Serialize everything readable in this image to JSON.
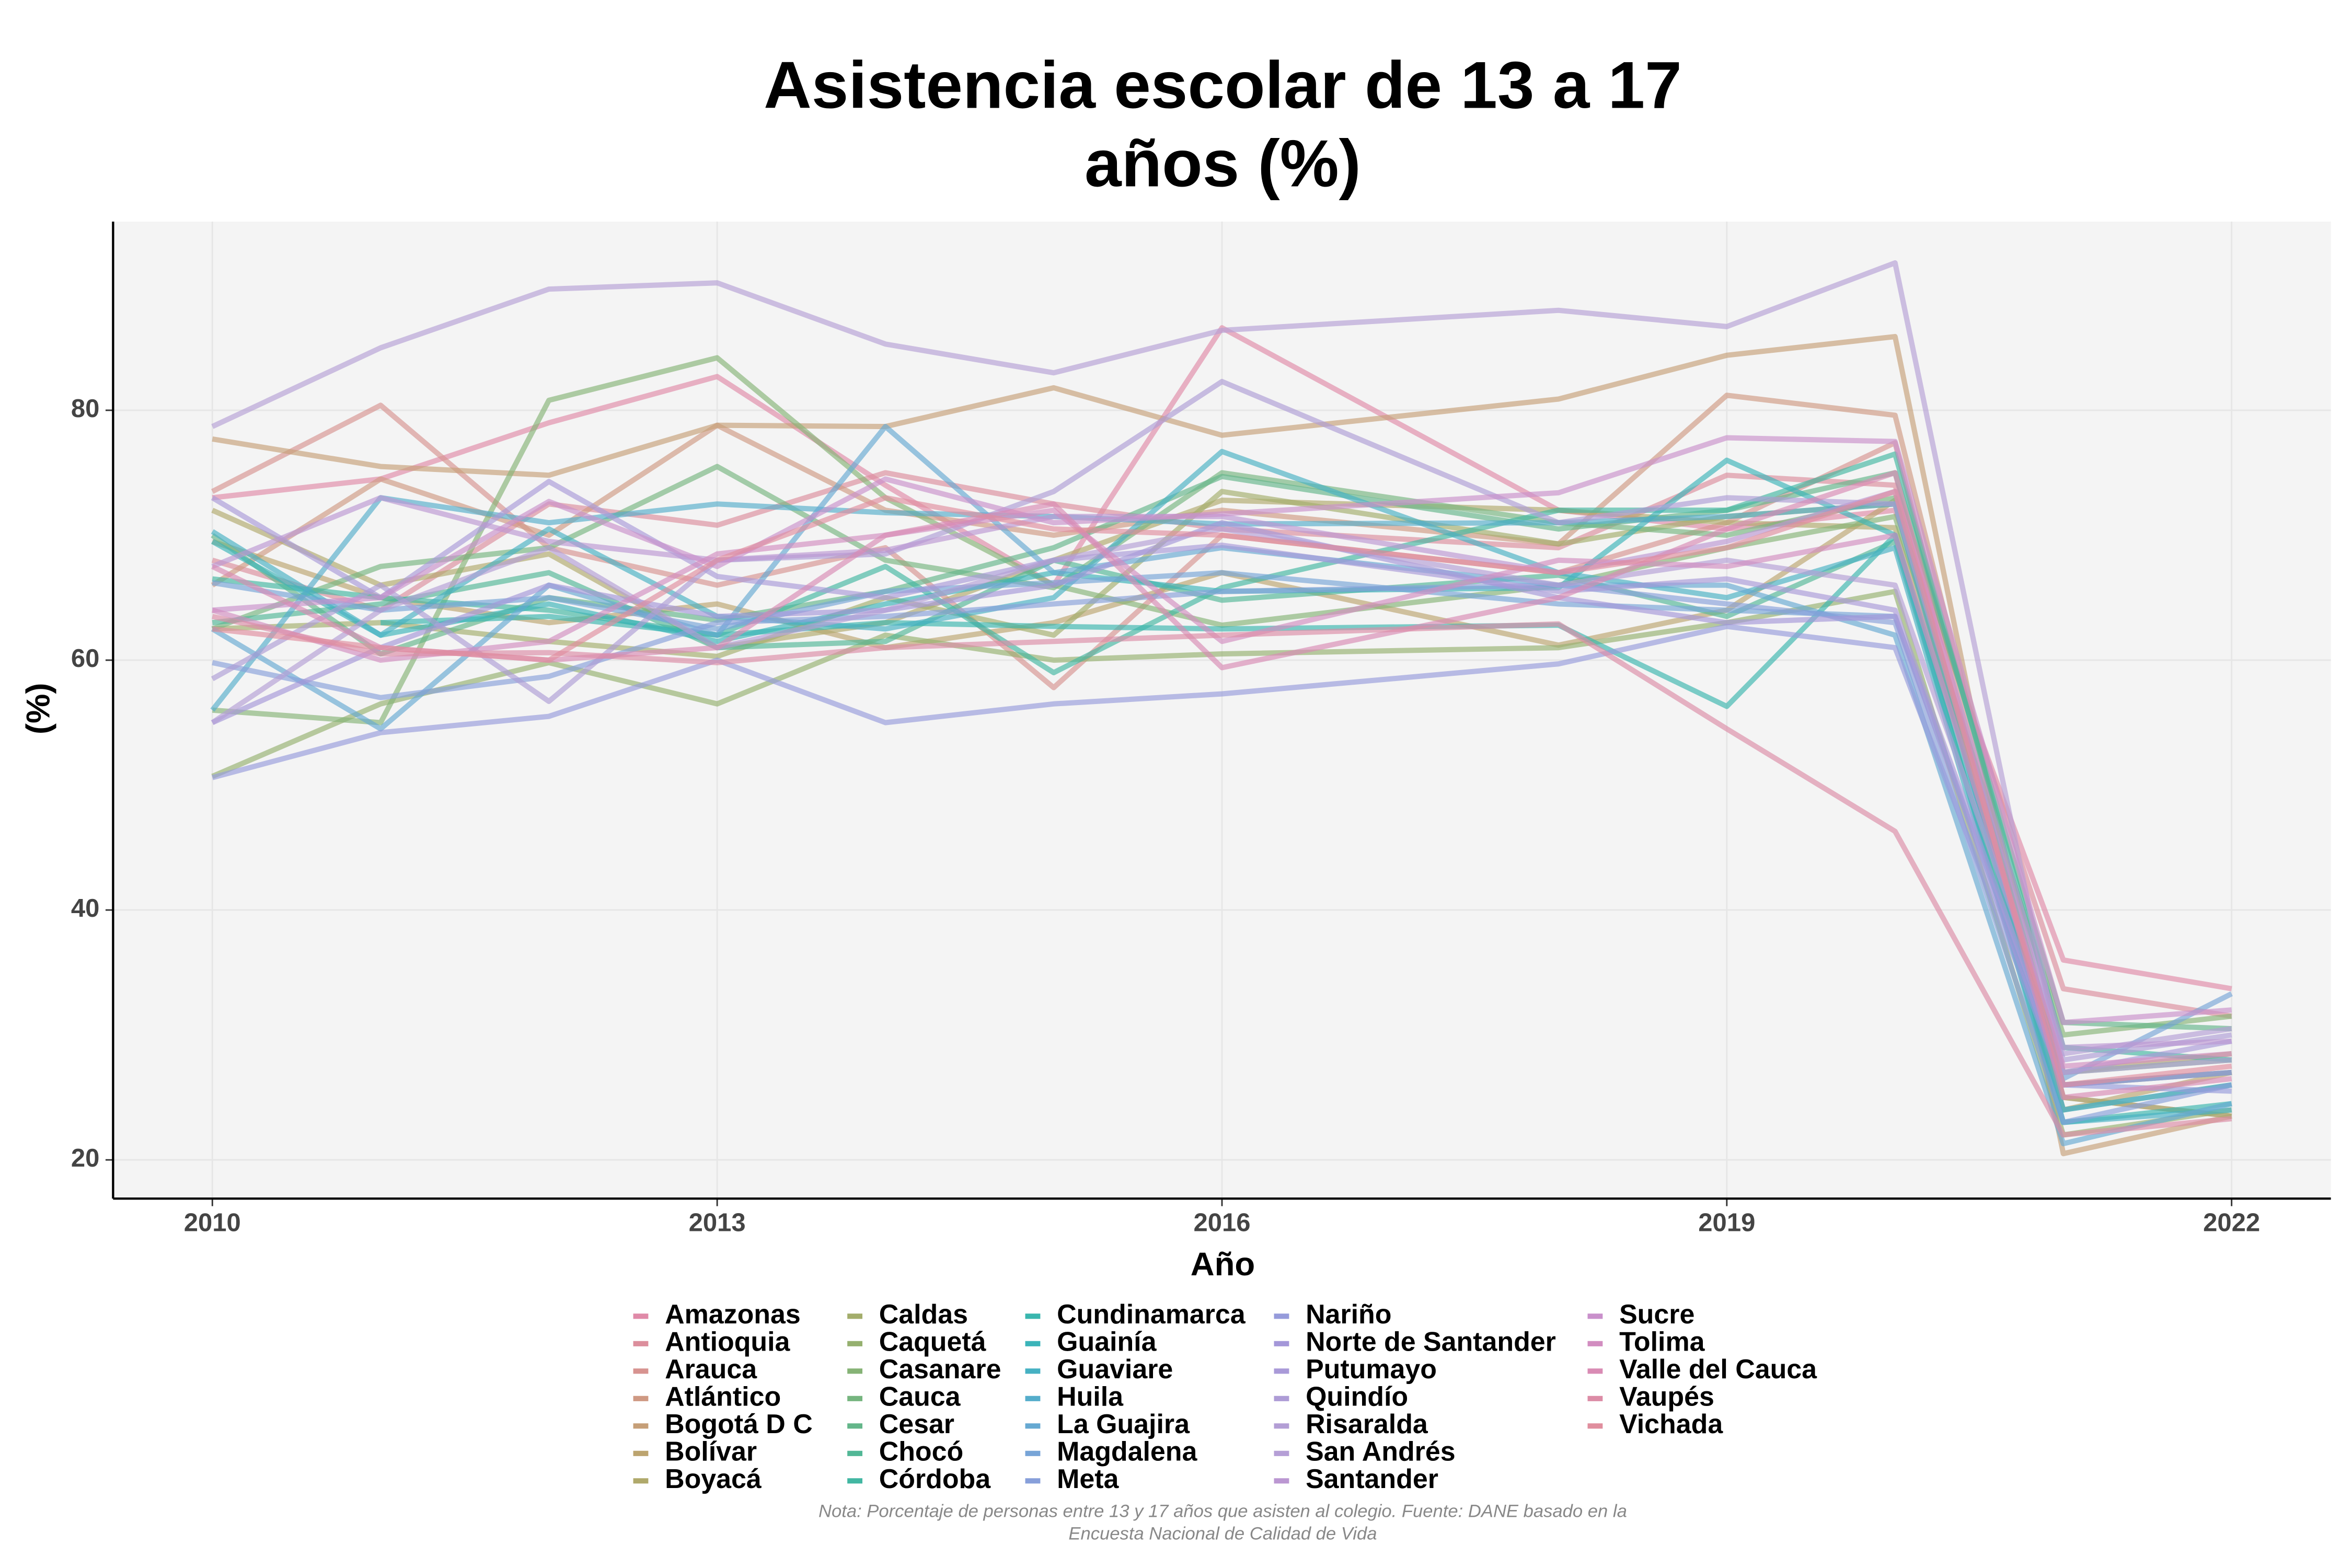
{
  "chart_data": {
    "type": "line",
    "title": [
      "Asistencia escolar de 13 a 17",
      "años (%)"
    ],
    "x_label": "Año",
    "y_label": "(%)",
    "note": [
      "Nota: Porcentaje de personas entre 13 y 17 años que asisten al colegio. Fuente: DANE basado en la",
      "Encuesta Nacional de Calidad de Vida"
    ],
    "x": [
      2010,
      2011,
      2012,
      2013,
      2014,
      2015,
      2016,
      2018,
      2019,
      2020,
      2021,
      2022
    ],
    "xlim": [
      2009.41,
      2022.59
    ],
    "xticks": [
      2010,
      2013,
      2016,
      2019,
      2022
    ],
    "ylim": [
      16.9,
      95.1
    ],
    "yticks": [
      20,
      40,
      60,
      80
    ],
    "grid": true,
    "legend": "bottom",
    "series": [
      {
        "name": "Amazonas",
        "color": "#e08aa8",
        "values": [
          73,
          74.5,
          79,
          82.7,
          74,
          66,
          86.6,
          72,
          70.5,
          72,
          36,
          33.7
        ]
      },
      {
        "name": "Antioquia",
        "color": "#dc8e9c",
        "values": [
          68,
          64,
          72.5,
          70.8,
          75,
          72.5,
          70.5,
          69,
          74.8,
          74,
          33.7,
          31.5
        ]
      },
      {
        "name": "Arauca",
        "color": "#d79390",
        "values": [
          73.5,
          80.4,
          69,
          66,
          69,
          57.8,
          70,
          67,
          71,
          77.4,
          25,
          23.5
        ]
      },
      {
        "name": "Atlántico",
        "color": "#cf9983",
        "values": [
          66,
          74.5,
          70,
          78.8,
          72,
          70,
          72,
          69.3,
          81.2,
          79.6,
          26,
          27
        ]
      },
      {
        "name": "Bogotá D C",
        "color": "#c69f78",
        "values": [
          77.7,
          75.5,
          74.8,
          78.8,
          78.7,
          81.8,
          78,
          80.9,
          84.4,
          85.9,
          20.5,
          23.5
        ]
      },
      {
        "name": "Bolívar",
        "color": "#bca46f",
        "values": [
          69.5,
          65,
          63,
          64.5,
          61,
          63,
          67,
          61.2,
          64,
          72.8,
          24,
          27
        ]
      },
      {
        "name": "Boyacá",
        "color": "#b0a96b",
        "values": [
          72,
          66,
          68.5,
          61,
          63,
          68,
          72.8,
          72,
          71,
          70.6,
          27,
          28.5
        ]
      },
      {
        "name": "Caldas",
        "color": "#a3ad6b",
        "values": [
          62.5,
          63,
          61.5,
          60.3,
          65,
          62,
          73.5,
          69.3,
          71.5,
          72.5,
          25,
          23.5
        ]
      },
      {
        "name": "Caquetá",
        "color": "#95b06f",
        "values": [
          50.7,
          56.5,
          59.8,
          56.5,
          62,
          60,
          60.5,
          61,
          63,
          65.5,
          22,
          24
        ]
      },
      {
        "name": "Casanare",
        "color": "#86b376",
        "values": [
          56,
          55,
          80.8,
          84.2,
          73,
          66,
          62.8,
          66,
          69,
          71.5,
          30,
          31.5
        ]
      },
      {
        "name": "Cauca",
        "color": "#76b57f",
        "values": [
          62.5,
          67.5,
          69,
          75.5,
          68,
          65.8,
          75,
          71,
          70,
          73,
          27,
          28
        ]
      },
      {
        "name": "Cesar",
        "color": "#64b68a",
        "values": [
          70,
          60.5,
          65,
          63.2,
          65.5,
          69,
          74.7,
          70.5,
          72,
          75,
          31,
          30.5
        ]
      },
      {
        "name": "Chocó",
        "color": "#52b796",
        "values": [
          63,
          64.5,
          67,
          61,
          61.5,
          68,
          64.8,
          66.8,
          63.5,
          69.5,
          24,
          26
        ]
      },
      {
        "name": "Córdoba",
        "color": "#42b7a2",
        "values": [
          66.5,
          65,
          64,
          62,
          67.5,
          59,
          65.8,
          72,
          72,
          76.5,
          29,
          28
        ]
      },
      {
        "name": "Cundinamarca",
        "color": "#39b6ae",
        "values": [
          null,
          63,
          63.5,
          62,
          63,
          62.7,
          62.5,
          62.8,
          56.3,
          70,
          23,
          24.5
        ]
      },
      {
        "name": "Guainía",
        "color": "#3bb4b9",
        "values": [
          69.5,
          62,
          64.5,
          61.5,
          64.5,
          67,
          65.5,
          65.8,
          76,
          70,
          26,
          27
        ]
      },
      {
        "name": "Guaviare",
        "color": "#46b1c3",
        "values": [
          70.3,
          62,
          70.5,
          63.5,
          62.5,
          65,
          76.7,
          67,
          65,
          69,
          23,
          24
        ]
      },
      {
        "name": "Huila",
        "color": "#55adcb",
        "values": [
          56,
          73,
          71,
          72.5,
          71.8,
          71.5,
          70.9,
          71,
          71.5,
          72.5,
          24,
          26
        ]
      },
      {
        "name": "La Guajira",
        "color": "#66a9d2",
        "values": [
          62.5,
          54.5,
          66,
          62,
          78.7,
          67,
          69,
          66,
          66,
          62,
          21.3,
          24.5
        ]
      },
      {
        "name": "Magdalena",
        "color": "#77a4d7",
        "values": [
          66.2,
          64,
          65,
          62.5,
          65.5,
          66.2,
          67,
          64.5,
          64,
          63.5,
          26.5,
          33.3
        ]
      },
      {
        "name": "Meta",
        "color": "#879fda",
        "values": [
          59.8,
          57,
          58.7,
          63,
          63.5,
          64.5,
          65.5,
          66,
          64.5,
          63,
          23,
          26
        ]
      },
      {
        "name": "Nariño",
        "color": "#969bdb",
        "values": [
          50.6,
          54.2,
          55.5,
          60,
          55,
          56.5,
          57.3,
          59.7,
          62.7,
          61,
          26,
          25.5
        ]
      },
      {
        "name": "Norte de Santander",
        "color": "#a497d9",
        "values": [
          55,
          61,
          66,
          63.5,
          64,
          66,
          71,
          65,
          63,
          63.5,
          26,
          27
        ]
      },
      {
        "name": "Putumayo",
        "color": "#a99ad8",
        "values": [
          73,
          65,
          74.3,
          66.7,
          65,
          68,
          69.2,
          65.5,
          66.5,
          64,
          27,
          29.5
        ]
      },
      {
        "name": "Quindío",
        "color": "#ae9cd6",
        "values": [
          58.5,
          66,
          56.7,
          68,
          68.5,
          73.5,
          82.3,
          71,
          73,
          72.5,
          28,
          30
        ]
      },
      {
        "name": "Risaralda",
        "color": "#b39ed5",
        "values": [
          55,
          64,
          69,
          61,
          64,
          68,
          70.5,
          66,
          68,
          66,
          28.5,
          30.5
        ]
      },
      {
        "name": "San Andrés",
        "color": "#b59fd6",
        "values": [
          78.7,
          85,
          89.7,
          90.2,
          85.3,
          83,
          86.4,
          88,
          86.7,
          91.8,
          27,
          28
        ]
      },
      {
        "name": "Santander",
        "color": "#bb97d2",
        "values": [
          67.5,
          73,
          69.5,
          68,
          68.8,
          71.5,
          71.5,
          67,
          69.5,
          73.5,
          29,
          29.5
        ]
      },
      {
        "name": "Sucre",
        "color": "#c990cb",
        "values": [
          64,
          65,
          72.7,
          67.5,
          74.5,
          71,
          71.7,
          73.4,
          77.8,
          77.5,
          31,
          32
        ]
      },
      {
        "name": "Tolima",
        "color": "#d28dc0",
        "values": [
          64,
          60,
          61.5,
          68.5,
          70,
          72,
          61.5,
          68,
          67.5,
          70,
          27.5,
          28.5
        ]
      },
      {
        "name": "Valle del Cauca",
        "color": "#d98bb4",
        "values": [
          67.5,
          61,
          60,
          61,
          70,
          72.5,
          59.4,
          65,
          70.5,
          75,
          25,
          26.5
        ]
      },
      {
        "name": "Vaupés",
        "color": "#dc8ca6",
        "values": [
          63.5,
          60.5,
          60.6,
          59.8,
          61,
          61.5,
          62,
          62.9,
          54.5,
          46.3,
          22,
          23.3
        ]
      },
      {
        "name": "Vichada",
        "color": "#e08e9e",
        "values": [
          62.5,
          61,
          60,
          68,
          73,
          70.5,
          70,
          67,
          69,
          73.5,
          26,
          27.5
        ]
      }
    ]
  }
}
